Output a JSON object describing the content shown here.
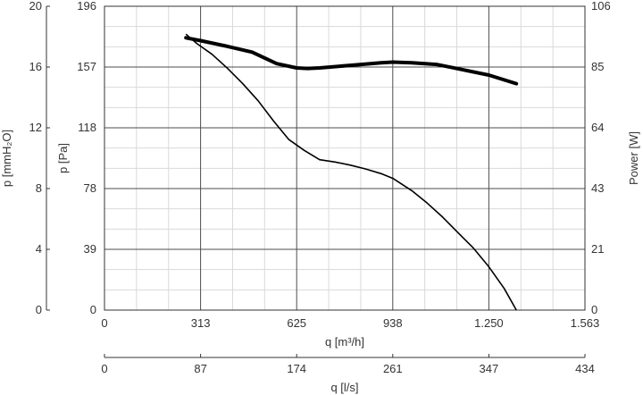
{
  "chart_data": {
    "type": "line",
    "axes": {
      "left_outer": {
        "label": "p [mmH₂O]",
        "ticks": [
          "0",
          "4",
          "8",
          "12",
          "16",
          "20"
        ],
        "range": [
          0,
          20
        ]
      },
      "left_inner": {
        "label": "p [Pa]",
        "ticks": [
          "0",
          "39",
          "78",
          "118",
          "157",
          "196"
        ],
        "range": [
          0,
          196
        ]
      },
      "right": {
        "label": "Power [W]",
        "ticks": [
          "0",
          "21",
          "43",
          "64",
          "85",
          "106"
        ],
        "range": [
          0,
          106
        ]
      },
      "bottom_primary": {
        "label": "q [m³/h]",
        "ticks": [
          "0",
          "313",
          "625",
          "938",
          "1.250",
          "1.563"
        ],
        "range": [
          0,
          1563
        ]
      },
      "bottom_secondary": {
        "label": "q [l/s]",
        "ticks": [
          "0",
          "87",
          "174",
          "261",
          "347",
          "434"
        ],
        "range": [
          0,
          434
        ]
      }
    },
    "grid": true,
    "series": [
      {
        "axis": "left_inner",
        "style": "thin",
        "x": [
          265,
          300,
          350,
          400,
          450,
          500,
          550,
          600,
          650,
          700,
          750,
          800,
          850,
          900,
          938,
          1000,
          1050,
          1100,
          1150,
          1200,
          1250,
          1300,
          1340
        ],
        "y": [
          178,
          172,
          165,
          156,
          146,
          135,
          122,
          110,
          103,
          97,
          95.5,
          93.5,
          91,
          88,
          85,
          77,
          69,
          60,
          50,
          40,
          28,
          14,
          0
        ]
      },
      {
        "axis": "right",
        "style": "thick",
        "x": [
          265,
          313,
          400,
          480,
          560,
          625,
          660,
          700,
          800,
          900,
          938,
          1000,
          1080,
          1150,
          1250,
          1340
        ],
        "y": [
          95,
          94,
          92,
          90,
          86,
          84.5,
          84.3,
          84.5,
          85.4,
          86.3,
          86.5,
          86.3,
          85.7,
          84.2,
          82,
          79
        ]
      }
    ]
  }
}
